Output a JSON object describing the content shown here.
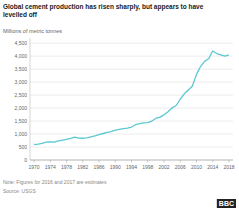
{
  "chart_data": {
    "type": "line",
    "title": "Global cement production has risen sharply, but appears to have\nlevelled off",
    "y_label": "Millions of metric tonnes",
    "annotations": [
      "Note: Figures for 2016 and 2017 are estimates",
      "Source: USGS",
      "BBC"
    ],
    "color": "#5bc8d2",
    "x": [
      1970,
      1971,
      1972,
      1973,
      1974,
      1975,
      1976,
      1977,
      1978,
      1979,
      1980,
      1981,
      1982,
      1983,
      1984,
      1985,
      1986,
      1987,
      1988,
      1989,
      1990,
      1991,
      1992,
      1993,
      1994,
      1995,
      1996,
      1997,
      1998,
      1999,
      2000,
      2001,
      2002,
      2003,
      2004,
      2005,
      2006,
      2007,
      2008,
      2009,
      2010,
      2011,
      2012,
      2013,
      2014,
      2015,
      2016,
      2017,
      2018
    ],
    "values": [
      594,
      614,
      641,
      688,
      700,
      692,
      735,
      765,
      798,
      831,
      882,
      840,
      838,
      854,
      890,
      929,
      977,
      1021,
      1065,
      1090,
      1150,
      1180,
      1210,
      1230,
      1270,
      1360,
      1400,
      1430,
      1440,
      1500,
      1600,
      1650,
      1740,
      1860,
      2010,
      2100,
      2340,
      2550,
      2700,
      2850,
      3300,
      3600,
      3800,
      3900,
      4200,
      4100,
      4050,
      4000,
      4050
    ],
    "xlim": [
      1969,
      2019
    ],
    "xticks": [
      1970,
      1974,
      1978,
      1982,
      1986,
      1990,
      1994,
      1998,
      2002,
      2006,
      2010,
      2014,
      2018
    ],
    "ylim": [
      0,
      4700
    ],
    "yticks": [
      0,
      500,
      {
        "value": 1000,
        "label": "1,000"
      },
      {
        "value": 1500,
        "label": "1,500"
      },
      {
        "value": 2000,
        "label": "2,000"
      },
      {
        "value": 2500,
        "label": "2,500"
      },
      {
        "value": 3000,
        "label": "3,000"
      },
      {
        "value": 3500,
        "label": "3,500"
      },
      {
        "value": 4000,
        "label": "4,000"
      },
      {
        "value": 4500,
        "label": "4,500"
      }
    ],
    "grid": true
  }
}
